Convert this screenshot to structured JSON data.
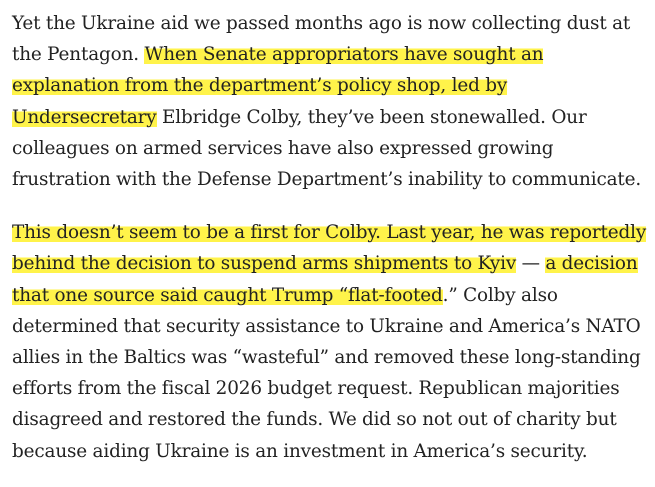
{
  "article": {
    "paragraphs": [
      {
        "segments": [
          {
            "text": "Yet the Ukraine aid we passed months ago is now collecting dust at the Pentagon. ",
            "highlight": false
          },
          {
            "text": "When Senate appropriators have sought an explanation from the department’s policy shop, led by Undersecretary",
            "highlight": true
          },
          {
            "text": " Elbridge Colby, they’ve been stonewalled. Our colleagues on armed services have also expressed growing frustration with the Defense Department’s inability to communicate.",
            "highlight": false
          }
        ]
      },
      {
        "segments": [
          {
            "text": "This doesn’t seem to be a first for Colby. Last year, he was reportedly behind the decision to suspend arms shipments to Kyiv",
            "highlight": true
          },
          {
            "text": " — ",
            "highlight": false
          },
          {
            "text": "a decision that one source said caught Trump “flat-footed",
            "highlight": true
          },
          {
            "text": ".” Colby also determined that security assistance to Ukraine and America’s NATO allies in the Baltics was “wasteful” and removed these long-standing efforts from the fiscal 2026 budget request. Republican majorities disagreed and restored the funds. We did so not out of charity but because aiding Ukraine is an investment in America’s security.",
            "highlight": false
          }
        ]
      }
    ],
    "highlight_color": "#fff34a",
    "text_color": "#222222"
  }
}
